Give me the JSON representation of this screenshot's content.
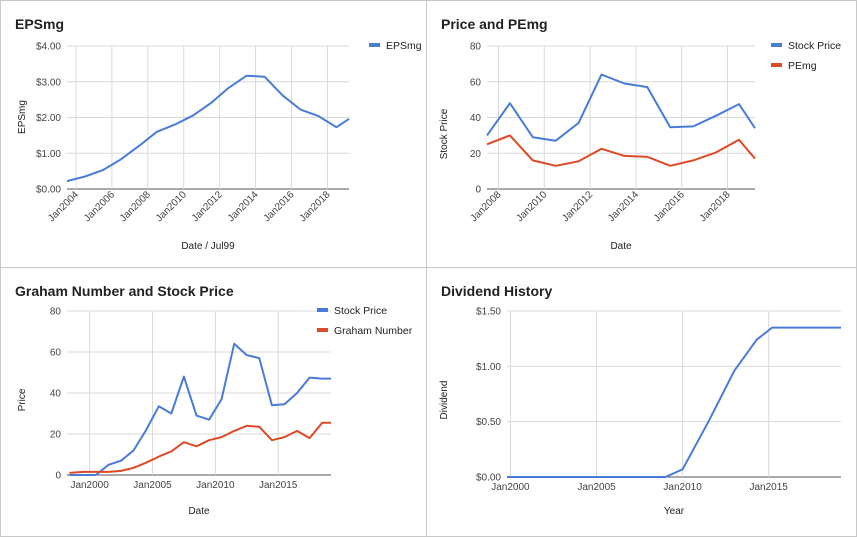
{
  "colors": {
    "blue": "#4a7bd8",
    "red": "#dc4a26",
    "grid": "#d9d9d9",
    "axis": "#555555"
  },
  "chart_data": [
    {
      "type": "line",
      "title": "EPSmg",
      "xlabel": "Date / Jul99",
      "ylabel": "EPSmg",
      "xlim": [
        2003.5,
        2019.2
      ],
      "ylim": [
        0,
        4
      ],
      "x_ticks": [
        2004,
        2006,
        2008,
        2010,
        2012,
        2014,
        2016,
        2018
      ],
      "x_tick_labels": [
        "Jan2004",
        "Jan2006",
        "Jan2008",
        "Jan2010",
        "Jan2012",
        "Jan2014",
        "Jan2016",
        "Jan2018"
      ],
      "y_ticks": [
        0,
        1,
        2,
        3,
        4
      ],
      "y_tick_labels": [
        "$0.00",
        "$1.00",
        "$2.00",
        "$3.00",
        "$4.00"
      ],
      "grid": true,
      "legend_position": "top-right",
      "series": [
        {
          "name": "EPSmg",
          "color": "#4a7bd8",
          "x": [
            2003.5,
            2004.5,
            2005.5,
            2006.5,
            2007.5,
            2008.5,
            2009.5,
            2010.5,
            2011.5,
            2012.5,
            2013.5,
            2014.5,
            2015.5,
            2016.5,
            2017.5,
            2018.5,
            2019.2
          ],
          "y": [
            0.22,
            0.35,
            0.53,
            0.83,
            1.2,
            1.6,
            1.8,
            2.05,
            2.4,
            2.83,
            3.17,
            3.14,
            2.62,
            2.22,
            2.04,
            1.73,
            1.96
          ]
        }
      ]
    },
    {
      "type": "line",
      "title": "Price and PEmg",
      "xlabel": "Date",
      "ylabel": "Stock Price",
      "xlim": [
        2007.5,
        2019.2
      ],
      "ylim": [
        0,
        80
      ],
      "x_ticks": [
        2008,
        2010,
        2012,
        2014,
        2016,
        2018
      ],
      "x_tick_labels": [
        "Jan2008",
        "Jan2010",
        "Jan2012",
        "Jan2014",
        "Jan2016",
        "Jan2018"
      ],
      "y_ticks": [
        0,
        20,
        40,
        60,
        80
      ],
      "y_tick_labels": [
        "0",
        "20",
        "40",
        "60",
        "80"
      ],
      "grid": true,
      "legend_position": "top-right",
      "series": [
        {
          "name": "Stock Price",
          "color": "#4a7bd8",
          "x": [
            2007.5,
            2008.5,
            2009.5,
            2010.5,
            2011.5,
            2012.5,
            2013.5,
            2014.5,
            2015.5,
            2016.5,
            2017.5,
            2018.5,
            2019.2
          ],
          "y": [
            30,
            48,
            29,
            27,
            37,
            64,
            59,
            57,
            34.5,
            35,
            41,
            47.5,
            34
          ]
        },
        {
          "name": "PEmg",
          "color": "#dc4a26",
          "x": [
            2007.5,
            2008.5,
            2009.5,
            2010.5,
            2011.5,
            2012.5,
            2013.5,
            2014.5,
            2015.5,
            2016.5,
            2017.5,
            2018.5,
            2019.2
          ],
          "y": [
            25,
            30,
            16,
            13,
            15.5,
            22.5,
            18.5,
            18,
            13,
            16,
            20.5,
            27.5,
            17
          ]
        }
      ]
    },
    {
      "type": "line",
      "title": "Graham Number and Stock Price",
      "xlabel": "Date",
      "ylabel": "Price",
      "xlim": [
        1998.2,
        2019.2
      ],
      "ylim": [
        0,
        80
      ],
      "x_ticks": [
        2000,
        2005,
        2010,
        2015
      ],
      "x_tick_labels": [
        "Jan2000",
        "Jan2005",
        "Jan2010",
        "Jan2015"
      ],
      "y_ticks": [
        0,
        20,
        40,
        60,
        80
      ],
      "y_tick_labels": [
        "0",
        "20",
        "40",
        "60",
        "80"
      ],
      "grid": true,
      "legend_position": "top-right",
      "series": [
        {
          "name": "Stock Price",
          "color": "#4a7bd8",
          "x": [
            1998.4,
            1999.5,
            2000.5,
            2001.5,
            2002.5,
            2003.5,
            2004.5,
            2005.5,
            2006.5,
            2007.5,
            2008.5,
            2009.5,
            2010.5,
            2011.5,
            2012.5,
            2013.5,
            2014.5,
            2015.5,
            2016.5,
            2017.5,
            2018.5,
            2019.2
          ],
          "y": [
            0,
            0,
            0,
            5,
            7,
            12,
            22,
            33.5,
            30,
            48,
            29,
            27,
            37,
            64,
            58.5,
            57,
            34,
            34.5,
            40,
            47.5,
            47,
            47
          ]
        },
        {
          "name": "Graham Number",
          "color": "#dc4a26",
          "x": [
            1998.4,
            1999.5,
            2000.5,
            2001.5,
            2002.5,
            2003.5,
            2004.5,
            2005.5,
            2006.5,
            2007.5,
            2008.5,
            2009.5,
            2010.5,
            2011.5,
            2012.5,
            2013.5,
            2014.5,
            2015.5,
            2016.5,
            2017.5,
            2018.5,
            2019.2
          ],
          "y": [
            1,
            1.5,
            1.5,
            1.5,
            2,
            3.5,
            6,
            9,
            11.5,
            16,
            14,
            17,
            18.5,
            21.5,
            24,
            23.5,
            17,
            18.5,
            21.5,
            18,
            25.5,
            25.5
          ]
        }
      ]
    },
    {
      "type": "line",
      "title": "Dividend History",
      "xlabel": "Year",
      "ylabel": "Dividend",
      "xlim": [
        1999.8,
        2019.2
      ],
      "ylim": [
        0,
        1.5
      ],
      "x_ticks": [
        2000,
        2005,
        2010,
        2015
      ],
      "x_tick_labels": [
        "Jan2000",
        "Jan2005",
        "Jan2010",
        "Jan2015"
      ],
      "y_ticks": [
        0,
        0.5,
        1,
        1.5
      ],
      "y_tick_labels": [
        "$0.00",
        "$0.50",
        "$1.00",
        "$1.50"
      ],
      "grid": true,
      "legend_position": "none",
      "series": [
        {
          "name": "",
          "color": "#4a7bd8",
          "x": [
            1999.8,
            2009.0,
            2010.0,
            2011.5,
            2013.0,
            2014.3,
            2015.2,
            2016.5,
            2019.2
          ],
          "y": [
            0,
            0,
            0.07,
            0.5,
            0.96,
            1.24,
            1.35,
            1.35,
            1.35
          ]
        }
      ]
    }
  ]
}
